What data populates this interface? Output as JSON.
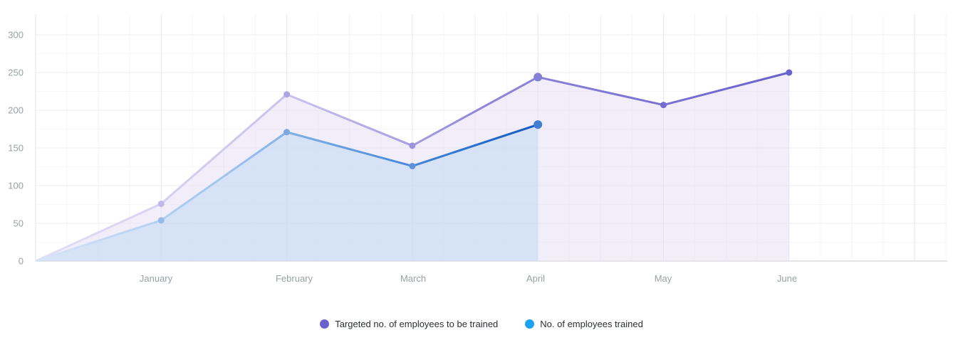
{
  "chart_data": {
    "type": "area",
    "categories": [
      "",
      "January",
      "February",
      "March",
      "April",
      "May",
      "June"
    ],
    "series": [
      {
        "name": "Targeted no. of employees to be trained",
        "color": "#6a62cc",
        "values": [
          0,
          76,
          221,
          153,
          244,
          207,
          250
        ]
      },
      {
        "name": "No. of employees trained",
        "color": "#1aa3f0",
        "values": [
          0,
          54,
          171,
          126,
          181,
          null,
          null
        ]
      }
    ],
    "xlabel": "",
    "ylabel": "",
    "ylim": [
      0,
      300
    ],
    "yticks": [
      0,
      50,
      100,
      150,
      200,
      250,
      300
    ],
    "grid": true,
    "legend": "bottom-center"
  }
}
